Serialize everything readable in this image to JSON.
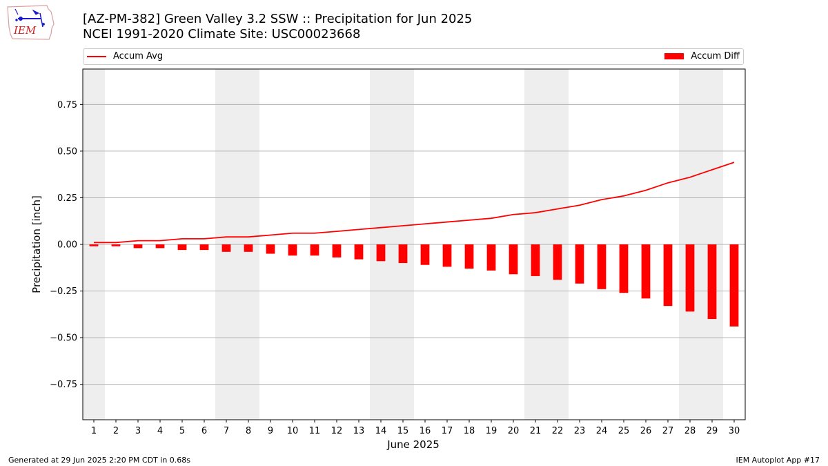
{
  "header": {
    "title_line1": "[AZ-PM-382] Green Valley 3.2 SSW :: Precipitation for Jun 2025",
    "title_line2": "NCEI 1991-2020 Climate Site: USC00023668",
    "logo_text": "IEM"
  },
  "legend": {
    "line_label": "Accum Avg",
    "bar_label": "Accum Diff",
    "placement": "top, full width"
  },
  "footer": {
    "left": "Generated at 29 Jun 2025 2:20 PM CDT in 0.68s",
    "right": "IEM Autoplot App #17"
  },
  "colors": {
    "series": "#ff0000",
    "weekend_shade": "#eeeeee",
    "grid": "#b0b0b0"
  },
  "chart_data": {
    "type": "bar",
    "title": "[AZ-PM-382] Green Valley 3.2 SSW :: Precipitation for Jun 2025",
    "subtitle": "NCEI 1991-2020 Climate Site: USC00023668",
    "xlabel": "June 2025",
    "ylabel": "Precipitation [inch]",
    "x": [
      1,
      2,
      3,
      4,
      5,
      6,
      7,
      8,
      9,
      10,
      11,
      12,
      13,
      14,
      15,
      16,
      17,
      18,
      19,
      20,
      21,
      22,
      23,
      24,
      25,
      26,
      27,
      28,
      29,
      30
    ],
    "xticklabels": [
      "1",
      "2",
      "3",
      "4",
      "5",
      "6",
      "7",
      "8",
      "9",
      "10",
      "11",
      "12",
      "13",
      "14",
      "15",
      "16",
      "17",
      "18",
      "19",
      "20",
      "21",
      "22",
      "23",
      "24",
      "25",
      "26",
      "27",
      "28",
      "29",
      "30"
    ],
    "xlim": [
      0.5,
      30.5
    ],
    "ylim": [
      -0.94,
      0.94
    ],
    "yticks": [
      -0.75,
      -0.5,
      -0.25,
      0.0,
      0.25,
      0.5,
      0.75
    ],
    "yticklabels": [
      "−0.75",
      "−0.50",
      "−0.25",
      "0.00",
      "0.25",
      "0.50",
      "0.75"
    ],
    "grid": "horizontal",
    "legend_position": "top",
    "shaded_weekends": [
      [
        0.5,
        1.5
      ],
      [
        6.5,
        8.5
      ],
      [
        13.5,
        15.5
      ],
      [
        20.5,
        22.5
      ],
      [
        27.5,
        29.5
      ]
    ],
    "series": [
      {
        "name": "Accum Diff",
        "kind": "bar",
        "color": "#ff0000",
        "values": [
          -0.01,
          -0.01,
          -0.02,
          -0.02,
          -0.03,
          -0.03,
          -0.04,
          -0.04,
          -0.05,
          -0.06,
          -0.06,
          -0.07,
          -0.08,
          -0.09,
          -0.1,
          -0.11,
          -0.12,
          -0.13,
          -0.14,
          -0.16,
          -0.17,
          -0.19,
          -0.21,
          -0.24,
          -0.26,
          -0.29,
          -0.33,
          -0.36,
          -0.4,
          -0.44
        ]
      },
      {
        "name": "Accum Avg",
        "kind": "line",
        "color": "#ff0000",
        "values": [
          0.01,
          0.01,
          0.02,
          0.02,
          0.03,
          0.03,
          0.04,
          0.04,
          0.05,
          0.06,
          0.06,
          0.07,
          0.08,
          0.09,
          0.1,
          0.11,
          0.12,
          0.13,
          0.14,
          0.16,
          0.17,
          0.19,
          0.21,
          0.24,
          0.26,
          0.29,
          0.33,
          0.36,
          0.4,
          0.44
        ]
      }
    ]
  }
}
